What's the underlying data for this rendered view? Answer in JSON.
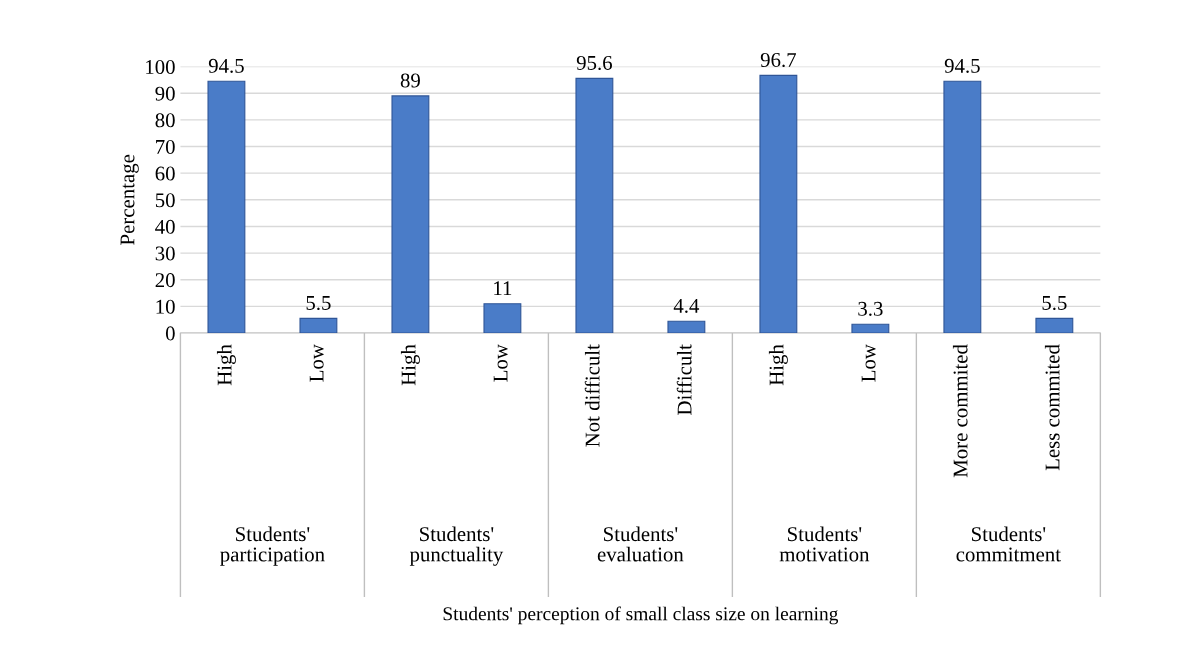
{
  "chart_data": {
    "type": "bar",
    "categories": [
      "High",
      "Low",
      "High",
      "Low",
      "Not difficult",
      "Difficult",
      "High",
      "Low",
      "More commited",
      "Less commited"
    ],
    "values": [
      94.5,
      5.5,
      89,
      11,
      95.6,
      4.4,
      96.7,
      3.3,
      94.5,
      5.5
    ],
    "color": "#4a7cc8",
    "data_labels": true,
    "value_labels": [
      "94.5",
      "5.5",
      "89",
      "11",
      "95.6",
      "4.4",
      "96.7",
      "3.3",
      "94.5",
      "5.5"
    ],
    "annotations": [
      "Students'\nparticipation",
      "Students'\npunctuality",
      "Students'\nevaluation",
      "Students'\nmotivation",
      "Students'\ncommitment",
      "Students' perception of small class size on learning"
    ],
    "ylabel": "Percentage",
    "ylim": [
      0,
      100
    ],
    "yticks": [
      0,
      10,
      20,
      30,
      40,
      50,
      60,
      70,
      80,
      90,
      100
    ],
    "grid": "y",
    "legend": false
  }
}
